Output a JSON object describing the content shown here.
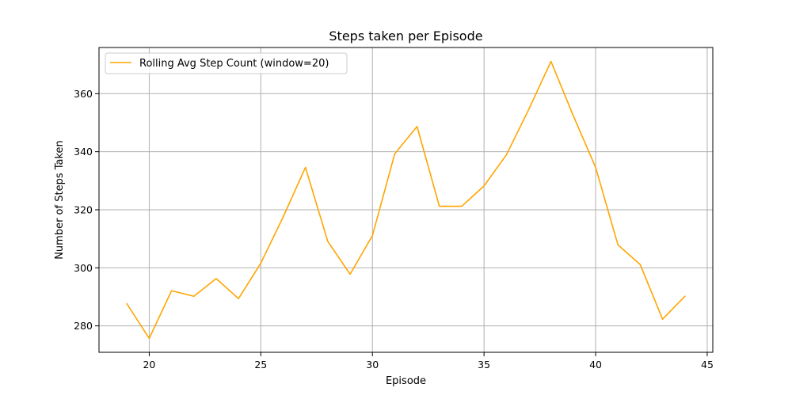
{
  "chart_data": {
    "type": "line",
    "title": "Steps taken per Episode",
    "xlabel": "Episode",
    "ylabel": "Number of Steps Taken",
    "xlim": [
      17.75,
      45.25
    ],
    "ylim": [
      270.9,
      375.9
    ],
    "xticks": [
      20,
      25,
      30,
      35,
      40,
      45
    ],
    "yticks": [
      280,
      300,
      320,
      340,
      360
    ],
    "grid": true,
    "legend": {
      "placement": "top-left"
    },
    "series": [
      {
        "name": "Rolling Avg Step Count (window=20)",
        "color": "#ffa500",
        "x": [
          19,
          20,
          21,
          22,
          23,
          24,
          25,
          26,
          27,
          28,
          29,
          30,
          31,
          32,
          33,
          34,
          35,
          36,
          37,
          38,
          39,
          40,
          41,
          42,
          43,
          44
        ],
        "y": [
          287.6,
          275.7,
          292.1,
          290.2,
          296.3,
          289.4,
          301.6,
          317.5,
          334.6,
          309.1,
          297.8,
          311.1,
          339.3,
          348.7,
          321.2,
          321.2,
          328.2,
          338.9,
          354.5,
          371.1,
          352.4,
          334.6,
          307.9,
          301.1,
          282.3,
          290.2
        ]
      }
    ]
  }
}
